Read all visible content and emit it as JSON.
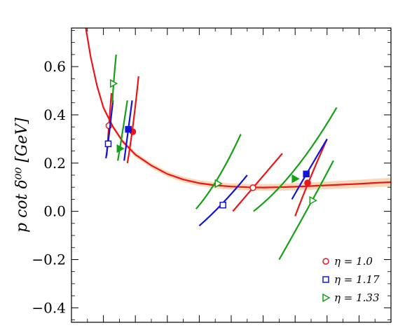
{
  "chart_data": {
    "type": "scatter",
    "title": "",
    "xlabel": "",
    "ylabel": "p cot δ⁰⁰ [GeV]",
    "ylim": [
      -0.46,
      0.76
    ],
    "xlim": [
      0,
      1
    ],
    "grid": false,
    "legend_position": "bottom-right",
    "y_ticks": [
      {
        "value": 0.6,
        "label": "0.6"
      },
      {
        "value": 0.4,
        "label": "0.4"
      },
      {
        "value": 0.2,
        "label": "0.2"
      },
      {
        "value": 0.0,
        "label": "0.0"
      },
      {
        "value": -0.2,
        "label": "−0.2"
      },
      {
        "value": -0.4,
        "label": "−0.4"
      }
    ],
    "fit_curve": {
      "color": "#e8151b",
      "band_color": "#f6c89a",
      "points": [
        [
          0.045,
          0.76
        ],
        [
          0.06,
          0.64
        ],
        [
          0.08,
          0.52
        ],
        [
          0.1,
          0.43
        ],
        [
          0.13,
          0.35
        ],
        [
          0.16,
          0.29
        ],
        [
          0.2,
          0.235
        ],
        [
          0.25,
          0.19
        ],
        [
          0.3,
          0.155
        ],
        [
          0.35,
          0.132
        ],
        [
          0.4,
          0.117
        ],
        [
          0.45,
          0.108
        ],
        [
          0.5,
          0.103
        ],
        [
          0.55,
          0.1
        ],
        [
          0.6,
          0.099
        ],
        [
          0.65,
          0.1
        ],
        [
          0.7,
          0.102
        ],
        [
          0.75,
          0.105
        ],
        [
          0.8,
          0.108
        ],
        [
          0.85,
          0.111
        ],
        [
          0.9,
          0.114
        ],
        [
          0.95,
          0.118
        ],
        [
          1.0,
          0.121
        ]
      ]
    },
    "series": [
      {
        "name": "η = 1.0",
        "color": "#e8151b",
        "points": [
          {
            "x": 0.117,
            "y": 0.355,
            "filled": false
          },
          {
            "x": 0.192,
            "y": 0.33,
            "filled": true
          },
          {
            "x": 0.568,
            "y": 0.098,
            "filled": false
          },
          {
            "x": 0.739,
            "y": 0.118,
            "filled": true
          }
        ],
        "bands": [
          [
            [
              0.11,
              0.23
            ],
            [
              0.117,
              0.355
            ],
            [
              0.125,
              0.49
            ]
          ],
          [
            [
              0.175,
              0.2
            ],
            [
              0.192,
              0.33
            ],
            [
              0.21,
              0.56
            ]
          ],
          [
            [
              0.505,
              0.0
            ],
            [
              0.568,
              0.098
            ],
            [
              0.66,
              0.24
            ]
          ],
          [
            [
              0.7,
              -0.02
            ],
            [
              0.739,
              0.118
            ],
            [
              0.8,
              0.3
            ]
          ]
        ]
      },
      {
        "name": "η = 1.17",
        "color": "#1414d9",
        "points": [
          {
            "x": 0.115,
            "y": 0.28,
            "filled": false
          },
          {
            "x": 0.178,
            "y": 0.34,
            "filled": true
          },
          {
            "x": 0.474,
            "y": 0.026,
            "filled": false
          },
          {
            "x": 0.735,
            "y": 0.155,
            "filled": true
          }
        ],
        "bands": [
          [
            [
              0.108,
              0.22
            ],
            [
              0.115,
              0.28
            ],
            [
              0.13,
              0.46
            ]
          ],
          [
            [
              0.165,
              0.21
            ],
            [
              0.178,
              0.34
            ],
            [
              0.19,
              0.46
            ]
          ],
          [
            [
              0.4,
              -0.06
            ],
            [
              0.474,
              0.026
            ],
            [
              0.55,
              0.15
            ]
          ],
          [
            [
              0.69,
              0.05
            ],
            [
              0.735,
              0.155
            ],
            [
              0.8,
              0.3
            ]
          ]
        ]
      },
      {
        "name": "η = 1.33",
        "color": "#16a016",
        "points": [
          {
            "x": 0.131,
            "y": 0.53,
            "filled": false
          },
          {
            "x": 0.152,
            "y": 0.26,
            "filled": true
          },
          {
            "x": 0.459,
            "y": 0.115,
            "filled": false
          },
          {
            "x": 0.7,
            "y": 0.135,
            "filled": true
          },
          {
            "x": 0.755,
            "y": 0.045,
            "filled": false
          }
        ],
        "bands": [
          [
            [
              0.128,
              0.45
            ],
            [
              0.131,
              0.53
            ],
            [
              0.14,
              0.65
            ]
          ],
          [
            [
              0.145,
              0.21
            ],
            [
              0.152,
              0.26
            ],
            [
              0.175,
              0.46
            ]
          ],
          [
            [
              0.39,
              0.01
            ],
            [
              0.459,
              0.115
            ],
            [
              0.53,
              0.32
            ]
          ],
          [
            [
              0.57,
              0.0
            ],
            [
              0.7,
              0.135
            ],
            [
              0.83,
              0.43
            ]
          ],
          [
            [
              0.65,
              -0.2
            ],
            [
              0.755,
              0.045
            ],
            [
              0.82,
              0.21
            ]
          ]
        ]
      }
    ]
  }
}
